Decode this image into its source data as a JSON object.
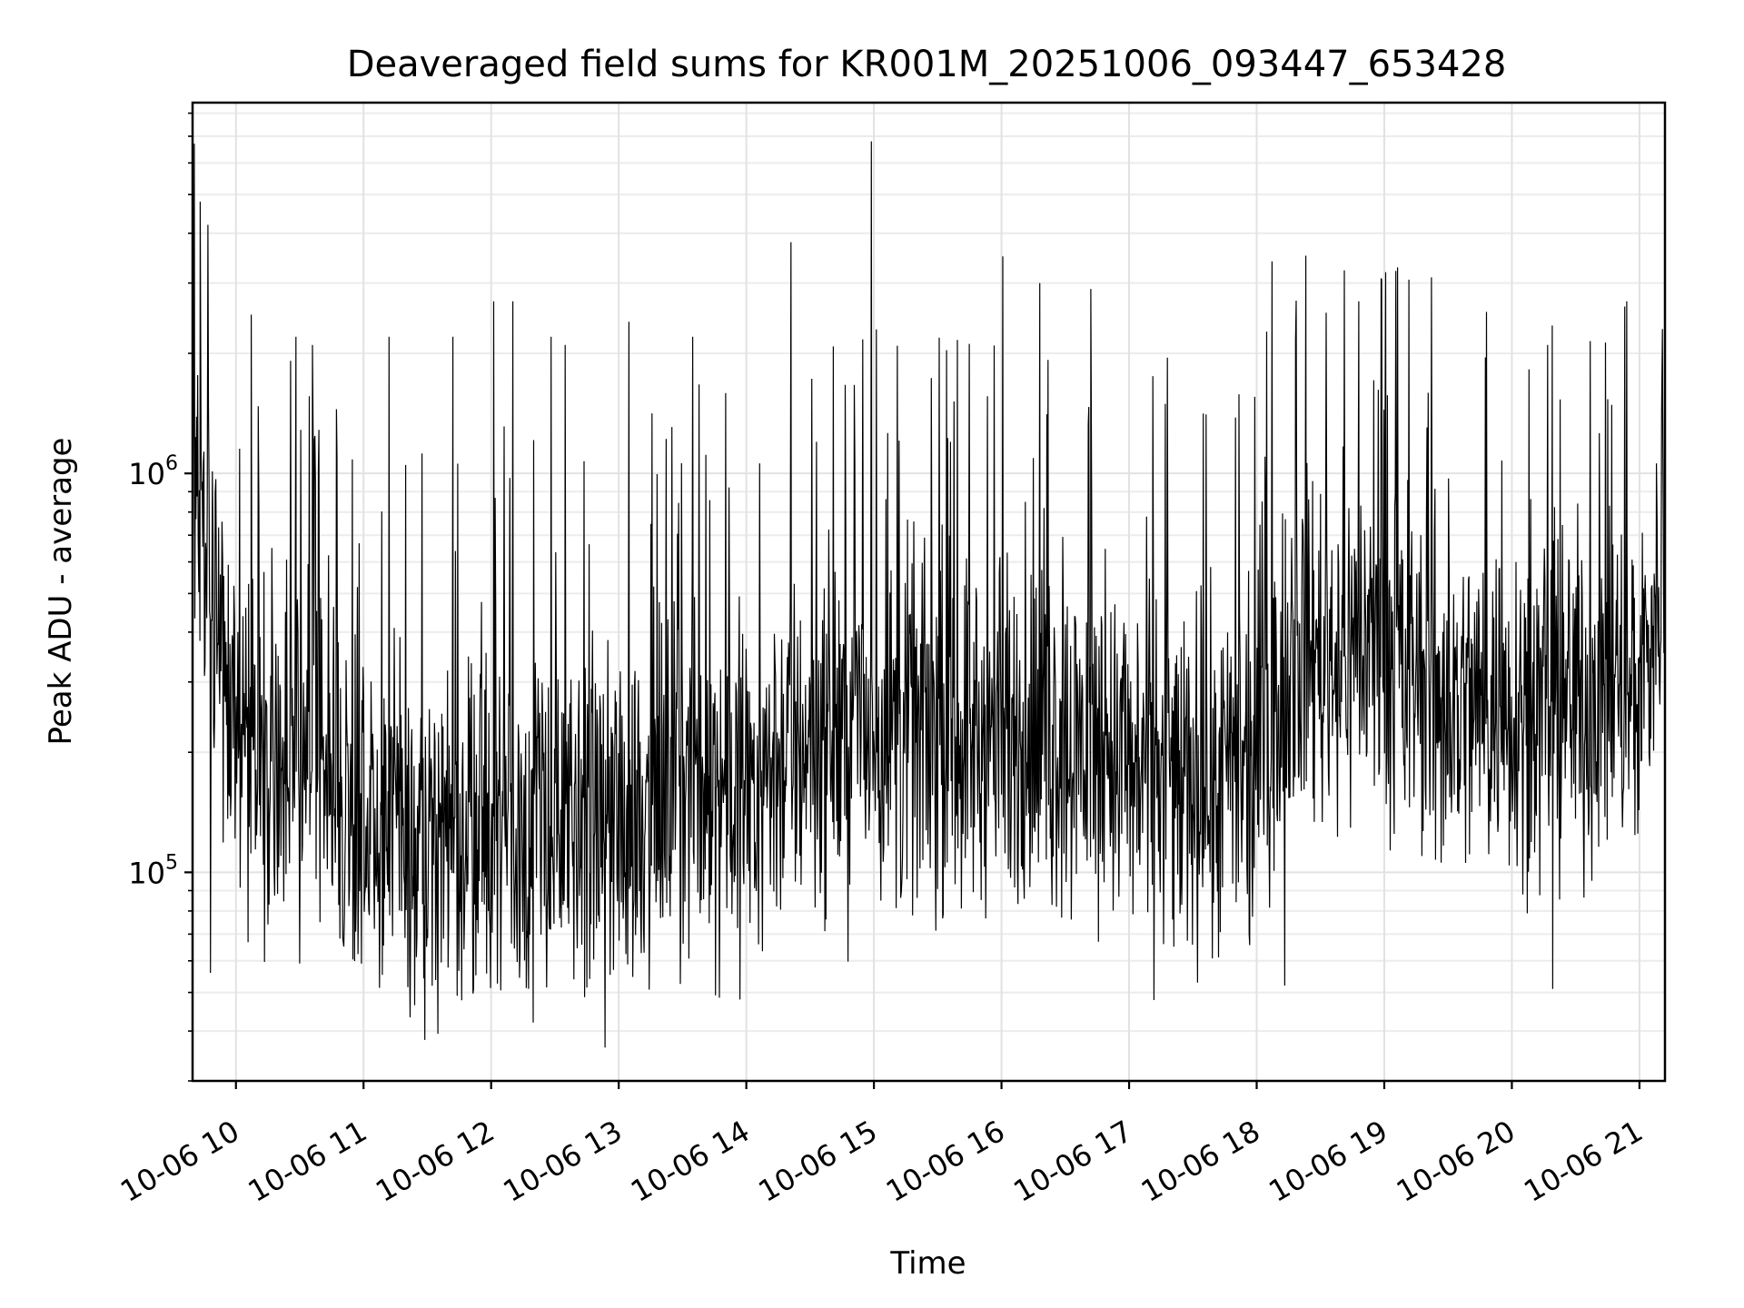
{
  "chart_data": {
    "type": "line",
    "title": "Deaveraged field sums for KR001M_20251006_093447_653428",
    "xlabel": "Time",
    "ylabel": "Peak ADU - average",
    "yscale": "log",
    "ylim": [
      30000,
      8500000
    ],
    "xlim_hours": [
      9.66,
      21.2
    ],
    "x_ticks": [
      {
        "hour": 10,
        "label": "10-06 10"
      },
      {
        "hour": 11,
        "label": "10-06 11"
      },
      {
        "hour": 12,
        "label": "10-06 12"
      },
      {
        "hour": 13,
        "label": "10-06 13"
      },
      {
        "hour": 14,
        "label": "10-06 14"
      },
      {
        "hour": 15,
        "label": "10-06 15"
      },
      {
        "hour": 16,
        "label": "10-06 16"
      },
      {
        "hour": 17,
        "label": "10-06 17"
      },
      {
        "hour": 18,
        "label": "10-06 18"
      },
      {
        "hour": 19,
        "label": "10-06 19"
      },
      {
        "hour": 20,
        "label": "10-06 20"
      },
      {
        "hour": 21,
        "label": "10-06 21"
      }
    ],
    "y_ticks": [
      {
        "value": 100000,
        "base": "10",
        "exp": "5"
      },
      {
        "value": 1000000,
        "base": "10",
        "exp": "6"
      }
    ],
    "grid": true,
    "line_color": "#000000",
    "baseline_profile": [
      {
        "hour": 9.66,
        "level": 800000
      },
      {
        "hour": 9.8,
        "level": 700000
      },
      {
        "hour": 10.0,
        "level": 230000
      },
      {
        "hour": 10.5,
        "level": 200000
      },
      {
        "hour": 11.0,
        "level": 150000
      },
      {
        "hour": 11.5,
        "level": 110000
      },
      {
        "hour": 12.0,
        "level": 140000
      },
      {
        "hour": 12.5,
        "level": 130000
      },
      {
        "hour": 13.0,
        "level": 140000
      },
      {
        "hour": 13.5,
        "level": 170000
      },
      {
        "hour": 14.0,
        "level": 170000
      },
      {
        "hour": 14.5,
        "level": 220000
      },
      {
        "hour": 15.0,
        "level": 230000
      },
      {
        "hour": 15.5,
        "level": 230000
      },
      {
        "hour": 16.0,
        "level": 220000
      },
      {
        "hour": 16.5,
        "level": 220000
      },
      {
        "hour": 17.0,
        "level": 200000
      },
      {
        "hour": 17.5,
        "level": 170000
      },
      {
        "hour": 18.0,
        "level": 170000
      },
      {
        "hour": 18.2,
        "level": 380000
      },
      {
        "hour": 18.5,
        "level": 360000
      },
      {
        "hour": 19.0,
        "level": 380000
      },
      {
        "hour": 19.5,
        "level": 260000
      },
      {
        "hour": 20.0,
        "level": 270000
      },
      {
        "hour": 20.5,
        "level": 270000
      },
      {
        "hour": 21.0,
        "level": 300000
      },
      {
        "hour": 21.2,
        "level": 600000
      }
    ],
    "peaks": [
      {
        "hour": 9.72,
        "value": 4800000
      },
      {
        "hour": 9.78,
        "value": 4200000
      },
      {
        "hour": 10.12,
        "value": 2500000
      },
      {
        "hour": 10.47,
        "value": 2200000
      },
      {
        "hour": 10.6,
        "value": 2100000
      },
      {
        "hour": 11.2,
        "value": 2200000
      },
      {
        "hour": 11.33,
        "value": 1050000
      },
      {
        "hour": 11.7,
        "value": 2200000
      },
      {
        "hour": 12.02,
        "value": 2700000
      },
      {
        "hour": 12.17,
        "value": 2700000
      },
      {
        "hour": 12.47,
        "value": 2200000
      },
      {
        "hour": 12.58,
        "value": 2100000
      },
      {
        "hour": 13.08,
        "value": 2400000
      },
      {
        "hour": 13.58,
        "value": 2200000
      },
      {
        "hour": 13.95,
        "value": 1400000
      },
      {
        "hour": 14.35,
        "value": 3800000
      },
      {
        "hour": 14.55,
        "value": 1200000
      },
      {
        "hour": 14.98,
        "value": 6800000
      },
      {
        "hour": 15.6,
        "value": 1200000
      },
      {
        "hour": 16.01,
        "value": 3500000
      },
      {
        "hour": 16.3,
        "value": 3000000
      },
      {
        "hour": 16.7,
        "value": 2900000
      },
      {
        "hour": 17.3,
        "value": 1950000
      },
      {
        "hour": 18.12,
        "value": 3400000
      },
      {
        "hour": 18.8,
        "value": 2700000
      },
      {
        "hour": 19.37,
        "value": 3100000
      },
      {
        "hour": 20.28,
        "value": 2100000
      },
      {
        "hour": 20.9,
        "value": 2700000
      },
      {
        "hour": 21.18,
        "value": 2300000
      }
    ],
    "dips": [
      {
        "hour": 9.8,
        "value": 56000
      },
      {
        "hour": 11.48,
        "value": 38000
      },
      {
        "hour": 12.33,
        "value": 42000
      },
      {
        "hour": 13.95,
        "value": 48000
      },
      {
        "hour": 18.22,
        "value": 52000
      },
      {
        "hour": 20.32,
        "value": 51000
      }
    ]
  }
}
